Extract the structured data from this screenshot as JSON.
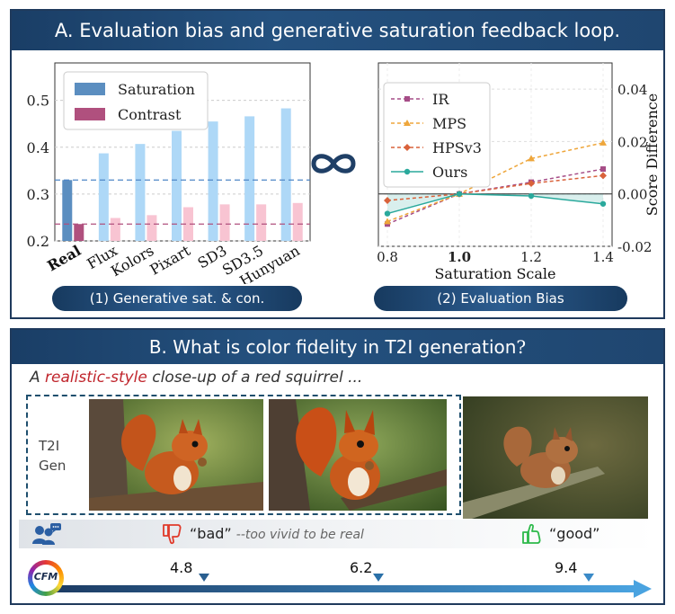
{
  "panel_a": {
    "title": "A. Evaluation bias and generative saturation feedback loop.",
    "pill1": "(1) Generative sat. & con.",
    "pill2": "(2) Evaluation Bias"
  },
  "panel_b": {
    "title": "B. What is color fidelity in T2I generation",
    "title_q": "?",
    "prompt_pre": "A ",
    "prompt_hl": "realistic-style",
    "prompt_post": " close-up of a red squirrel ...",
    "gen_label_1": "T2I",
    "gen_label_2": "Gen",
    "bad_label": "“bad”",
    "bad_note": "--too vivid to be real",
    "good_label": "“good”",
    "cfm_logo": "CFM",
    "scores": [
      "4.8",
      "6.2",
      "9.4"
    ]
  },
  "chart_data": [
    {
      "type": "bar",
      "categories": [
        "Real",
        "Flux",
        "Kolors",
        "Pixart",
        "SD3",
        "SD3.5",
        "Hunyuan"
      ],
      "series": [
        {
          "name": "Saturation",
          "values": [
            0.33,
            0.387,
            0.407,
            0.435,
            0.455,
            0.466,
            0.483
          ]
        },
        {
          "name": "Contrast",
          "values": [
            0.236,
            0.249,
            0.255,
            0.272,
            0.278,
            0.278,
            0.281
          ]
        }
      ],
      "reference_lines": [
        0.33,
        0.236
      ],
      "ylim": [
        0.2,
        0.58
      ],
      "yticks": [
        "0.2",
        "0.3",
        "0.4",
        "0.5"
      ],
      "grid": true,
      "legend": "top-left",
      "colors": {
        "real_sat": "#5b8ec0",
        "real_con": "#b0507e",
        "sat": "#aed8f7",
        "con": "#f8c4d2"
      }
    },
    {
      "type": "line",
      "x": [
        0.8,
        1.0,
        1.2,
        1.4
      ],
      "xticks": [
        "0.8",
        "1.0",
        "1.2",
        "1.4"
      ],
      "xlabel": "Saturation Scale",
      "ylabel": "Score Difference",
      "ylim": [
        -0.02,
        0.05
      ],
      "yticks": [
        "0.04",
        "0.02",
        "0.00",
        "-0.02"
      ],
      "series": [
        {
          "name": "IR",
          "values": [
            -0.0115,
            0.0,
            0.0045,
            0.0095
          ],
          "color": "#a64d87"
        },
        {
          "name": "MPS",
          "values": [
            -0.0105,
            0.0,
            0.0135,
            0.0195
          ],
          "color": "#eea63b"
        },
        {
          "name": "HPSv3",
          "values": [
            -0.0025,
            0.0,
            0.004,
            0.007
          ],
          "color": "#d9623b"
        },
        {
          "name": "Ours",
          "values": [
            -0.0075,
            0.0,
            -0.0008,
            -0.0038
          ],
          "color": "#2aa99c"
        }
      ],
      "legend": "top-left",
      "grid": true
    }
  ]
}
